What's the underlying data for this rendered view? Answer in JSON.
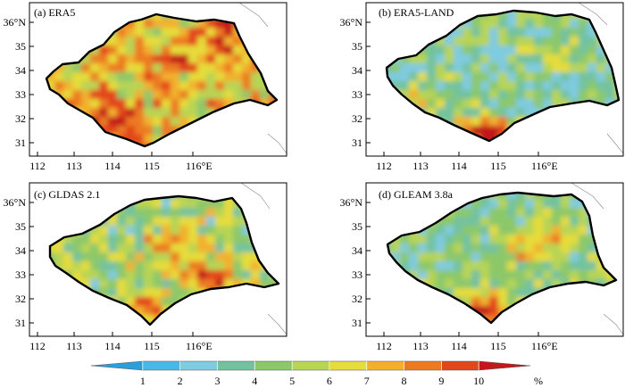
{
  "panels": [
    {
      "id": "a",
      "label": "(a) ERA5",
      "dataset": "ERA5"
    },
    {
      "id": "b",
      "label": "(b) ERA5-LAND",
      "dataset": "ERA5-LAND"
    },
    {
      "id": "c",
      "label": "(c) GLDAS 2.1",
      "dataset": "GLDAS 2.1"
    },
    {
      "id": "d",
      "label": "(d) GLEAM 3.8a",
      "dataset": "GLEAM 3.8a"
    }
  ],
  "axes": {
    "lon_ticks": [
      "112",
      "113",
      "114",
      "115",
      "116°E"
    ],
    "lat_ticks": [
      "31",
      "32",
      "33",
      "34",
      "35",
      "36°N"
    ],
    "lon_range": [
      111.7,
      117.0
    ],
    "lat_range": [
      30.6,
      36.3
    ]
  },
  "colorbar": {
    "ticks": [
      "1",
      "2",
      "3",
      "4",
      "5",
      "6",
      "7",
      "8",
      "9",
      "10"
    ],
    "unit": "%",
    "colors": [
      "#2b9fd9",
      "#4ab8e6",
      "#7fcbe0",
      "#72c2a0",
      "#8cc86a",
      "#b8d454",
      "#e6dc3a",
      "#f2b02e",
      "#ec7a22",
      "#e3451c",
      "#c2181c"
    ]
  }
}
